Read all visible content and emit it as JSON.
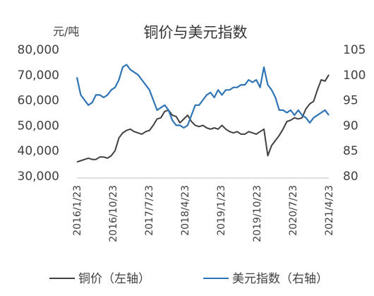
{
  "chart_data": {
    "type": "line",
    "title": "铜价与美元指数",
    "y_left_unit": "元/吨",
    "x_tick_labels": [
      "2016/1/23",
      "2016/10/23",
      "2017/7/23",
      "2018/4/23",
      "2019/1/23",
      "2019/10/23",
      "2020/7/23",
      "2021/4/23"
    ],
    "y_left": {
      "range": [
        30000,
        80000
      ],
      "tick_values": [
        30000,
        40000,
        50000,
        60000,
        70000,
        80000
      ],
      "tick_labels": [
        "30,000",
        "40,000",
        "50,000",
        "60,000",
        "70,000",
        "80,000"
      ]
    },
    "y_right": {
      "range": [
        80,
        105
      ],
      "tick_values": [
        80,
        85,
        90,
        95,
        100,
        105
      ],
      "tick_labels": [
        "80",
        "85",
        "90",
        "95",
        "100",
        "105"
      ]
    },
    "x_range_months": [
      0,
      66
    ],
    "x_unit_note": "months since 2016/1/23",
    "legend_position": "bottom",
    "grid": false,
    "series": [
      {
        "name": "铜价（左轴）",
        "axis": "left",
        "color": "#404040",
        "x": [
          0,
          1,
          2,
          3,
          4,
          5,
          6,
          7,
          8,
          9,
          10,
          11,
          12,
          13,
          14,
          15,
          16,
          17,
          18,
          19,
          20,
          21,
          22,
          23,
          24,
          25,
          26,
          27,
          28,
          29,
          30,
          31,
          32,
          33,
          34,
          35,
          36,
          37,
          38,
          39,
          40,
          41,
          42,
          43,
          44,
          45,
          46,
          47,
          48,
          49,
          50,
          51,
          52,
          53,
          54,
          55,
          56,
          57,
          58,
          59,
          60,
          61,
          62,
          63,
          64,
          65,
          66
        ],
        "values": [
          35500,
          36000,
          36500,
          37000,
          36500,
          36500,
          37500,
          37500,
          37000,
          38000,
          40000,
          45000,
          47000,
          48000,
          48500,
          47500,
          47000,
          46500,
          47500,
          48000,
          50000,
          52500,
          53000,
          55500,
          56000,
          54000,
          53500,
          51000,
          52500,
          54000,
          51500,
          50000,
          49500,
          50000,
          49000,
          48500,
          49000,
          48500,
          50000,
          48500,
          47500,
          47000,
          47500,
          46500,
          46500,
          47500,
          47000,
          46500,
          47500,
          48500,
          38000,
          42000,
          44000,
          46000,
          48500,
          51500,
          52000,
          53000,
          52500,
          53000,
          56500,
          58500,
          59500,
          64000,
          68000,
          67500,
          70000
        ]
      },
      {
        "name": "美元指数（右轴）",
        "axis": "right",
        "color": "#2f75b5",
        "x": [
          0,
          1,
          2,
          3,
          4,
          5,
          6,
          7,
          8,
          9,
          10,
          11,
          12,
          13,
          14,
          15,
          16,
          17,
          18,
          19,
          20,
          21,
          22,
          23,
          24,
          25,
          26,
          27,
          28,
          29,
          30,
          31,
          32,
          33,
          34,
          35,
          36,
          37,
          38,
          39,
          40,
          41,
          42,
          43,
          44,
          45,
          46,
          47,
          48,
          49,
          50,
          51,
          52,
          53,
          54,
          55,
          56,
          57,
          58,
          59,
          60,
          61,
          62,
          63,
          64,
          65,
          66
        ],
        "values": [
          99.5,
          96,
          95,
          94,
          94.5,
          96,
          96,
          95.5,
          96,
          97,
          97.5,
          99,
          101.5,
          102,
          101,
          100.5,
          100,
          99,
          98,
          97,
          95,
          93,
          93.5,
          94,
          93,
          91,
          90,
          90,
          89.5,
          90,
          92,
          94,
          94,
          95,
          96,
          96.5,
          95.5,
          97,
          96,
          97,
          97,
          97.5,
          97.5,
          98,
          98,
          99,
          98.5,
          99,
          97.5,
          101.5,
          98,
          97,
          95.5,
          93,
          93,
          92.5,
          93,
          92,
          93,
          92,
          91.5,
          90.5,
          91.5,
          92,
          92.5,
          93,
          92
        ]
      }
    ]
  }
}
